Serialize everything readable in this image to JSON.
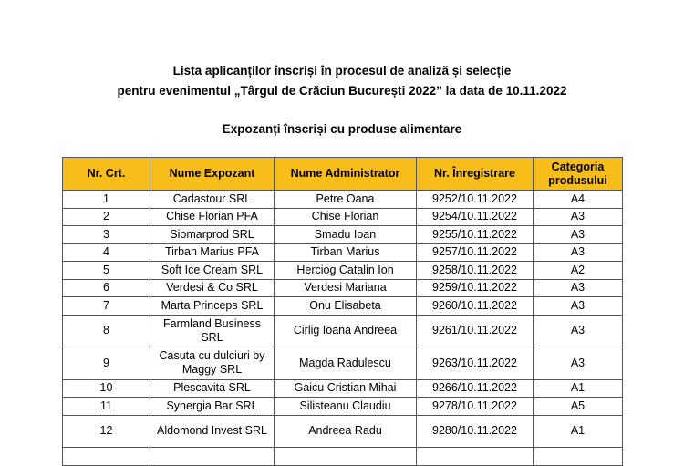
{
  "document": {
    "title_line1": "Lista aplicanților înscriși în procesul de analiză și selecție",
    "title_line2": "pentru evenimentul „Târgul de Crăciun București 2022” la data de 10.11.2022",
    "subtitle": "Expozanți înscriși cu produse alimentare",
    "header_color": "#f7bd1a"
  },
  "table": {
    "headers": [
      "Nr. Crt.",
      "Nume Expozant",
      "Nume Administrator",
      "Nr. Înregistrare",
      "Categoria produsului"
    ],
    "rows": [
      [
        "1",
        "Cadastour SRL",
        "Petre Oana",
        "9252/10.11.2022",
        "A4"
      ],
      [
        "2",
        "Chise Florian PFA",
        "Chise Florian",
        "9254/10.11.2022",
        "A3"
      ],
      [
        "3",
        "Siomarprod SRL",
        "Smadu Ioan",
        "9255/10.11.2022",
        "A3"
      ],
      [
        "4",
        "Tirban Marius PFA",
        "Tirban Marius",
        "9257/10.11.2022",
        "A3"
      ],
      [
        "5",
        "Soft Ice Cream SRL",
        "Herciog Catalin Ion",
        "9258/10.11.2022",
        "A2"
      ],
      [
        "6",
        "Verdesi & Co SRL",
        "Verdesi Mariana",
        "9259/10.11.2022",
        "A3"
      ],
      [
        "7",
        "Marta Princeps SRL",
        "Onu Elisabeta",
        "9260/10.11.2022",
        "A3"
      ],
      [
        "8",
        "Farmland Business SRL",
        "Cirlig Ioana Andreea",
        "9261/10.11.2022",
        "A3"
      ],
      [
        "9",
        "Casuta cu dulciuri by Maggy SRL",
        "Magda Radulescu",
        "9263/10.11.2022",
        "A3"
      ],
      [
        "10",
        "Plescavita SRL",
        "Gaicu Cristian Mihai",
        "9266/10.11.2022",
        "A1"
      ],
      [
        "11",
        "Synergia Bar SRL",
        "Silisteanu Claudiu",
        "9278/10.11.2022",
        "A5"
      ],
      [
        "12",
        "Aldomond Invest SRL",
        "Andreea Radu",
        "9280/10.11.2022",
        "A1"
      ]
    ]
  }
}
